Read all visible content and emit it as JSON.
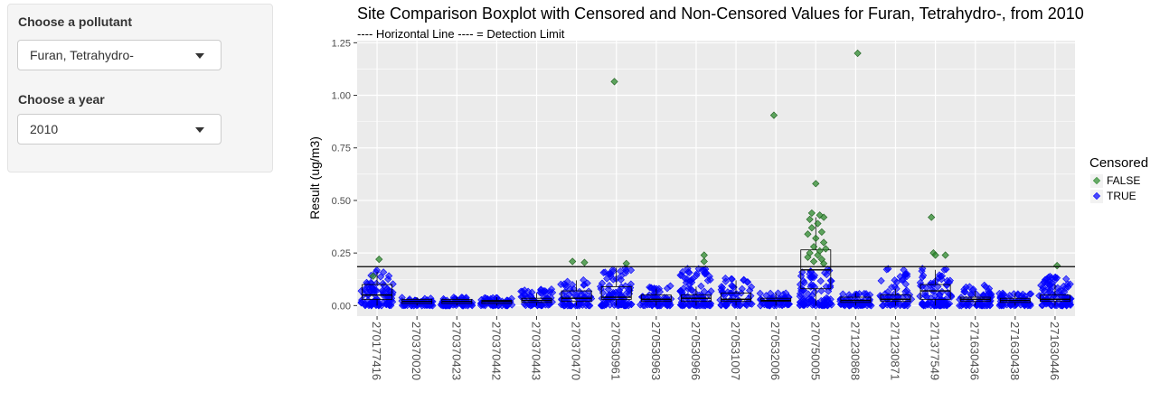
{
  "sidebar": {
    "pollutant_label": "Choose a pollutant",
    "pollutant_value": "Furan, Tetrahydro-",
    "year_label": "Choose a year",
    "year_value": "2010"
  },
  "colors": {
    "censored_false": "#2e8b2e",
    "censored_true": "#0000ff",
    "panel_bg": "#ebebeb",
    "grid": "#ffffff"
  },
  "chart_data": {
    "type": "boxplot",
    "title": "Site Comparison Boxplot with Censored and Non-Censored Values for Furan, Tetrahydro-, from 2010",
    "subtitle": "---- Horizontal Line ----  =  Detection Limit",
    "xlabel": "",
    "ylabel": "Result (ug/m3)",
    "ylim": [
      -0.05,
      1.26
    ],
    "yticks": [
      0,
      0.25,
      0.5,
      0.75,
      1,
      1.25
    ],
    "ytick_labels": [
      "0.00",
      "0.25",
      "0.50",
      "0.75",
      "1.00",
      "1.25"
    ],
    "grid": true,
    "detection_limit": 0.185,
    "legend": {
      "title": "Censored",
      "position": "right",
      "entries": [
        "FALSE",
        "TRUE"
      ]
    },
    "categories": [
      "270177416",
      "270370020",
      "270370423",
      "270370442",
      "270370443",
      "270370470",
      "270530961",
      "270530963",
      "270530966",
      "270531007",
      "270532006",
      "270750005",
      "271230868",
      "271230871",
      "271377549",
      "271630436",
      "271630438",
      "271630446"
    ],
    "boxes": [
      {
        "q1": 0.03,
        "median": 0.05,
        "q3": 0.1,
        "low": 0.0,
        "high": 0.16
      },
      {
        "q1": 0.01,
        "median": 0.02,
        "q3": 0.03,
        "low": 0.0,
        "high": 0.04
      },
      {
        "q1": 0.01,
        "median": 0.02,
        "q3": 0.03,
        "low": 0.0,
        "high": 0.04
      },
      {
        "q1": 0.01,
        "median": 0.02,
        "q3": 0.025,
        "low": 0.0,
        "high": 0.04
      },
      {
        "q1": 0.015,
        "median": 0.025,
        "q3": 0.035,
        "low": 0.0,
        "high": 0.06
      },
      {
        "q1": 0.02,
        "median": 0.035,
        "q3": 0.07,
        "low": 0.0,
        "high": 0.12
      },
      {
        "q1": 0.03,
        "median": 0.04,
        "q3": 0.09,
        "low": 0.0,
        "high": 0.18
      },
      {
        "q1": 0.02,
        "median": 0.03,
        "q3": 0.05,
        "low": 0.0,
        "high": 0.08
      },
      {
        "q1": 0.02,
        "median": 0.035,
        "q3": 0.05,
        "low": 0.0,
        "high": 0.09
      },
      {
        "q1": 0.02,
        "median": 0.03,
        "q3": 0.06,
        "low": 0.0,
        "high": 0.12
      },
      {
        "q1": 0.02,
        "median": 0.025,
        "q3": 0.035,
        "low": 0.0,
        "high": 0.06
      },
      {
        "q1": 0.08,
        "median": 0.17,
        "q3": 0.265,
        "low": 0.0,
        "high": 0.42
      },
      {
        "q1": 0.015,
        "median": 0.025,
        "q3": 0.04,
        "low": 0.0,
        "high": 0.06
      },
      {
        "q1": 0.02,
        "median": 0.03,
        "q3": 0.05,
        "low": 0.0,
        "high": 0.08
      },
      {
        "q1": 0.03,
        "median": 0.07,
        "q3": 0.1,
        "low": 0.0,
        "high": 0.17
      },
      {
        "q1": 0.02,
        "median": 0.03,
        "q3": 0.04,
        "low": 0.0,
        "high": 0.07
      },
      {
        "q1": 0.015,
        "median": 0.025,
        "q3": 0.035,
        "low": 0.0,
        "high": 0.06
      },
      {
        "q1": 0.02,
        "median": 0.03,
        "q3": 0.05,
        "low": 0.0,
        "high": 0.1
      }
    ],
    "noncensored_points": [
      {
        "site": 0,
        "x_offset": 0.05,
        "y": 0.22
      },
      {
        "site": 0,
        "x_offset": -0.1,
        "y": 0.14
      },
      {
        "site": 5,
        "x_offset": -0.1,
        "y": 0.21
      },
      {
        "site": 5,
        "x_offset": 0.2,
        "y": 0.205
      },
      {
        "site": 6,
        "x_offset": -0.05,
        "y": 1.065
      },
      {
        "site": 6,
        "x_offset": 0.25,
        "y": 0.2
      },
      {
        "site": 8,
        "x_offset": 0.2,
        "y": 0.24
      },
      {
        "site": 8,
        "x_offset": 0.2,
        "y": 0.21
      },
      {
        "site": 10,
        "x_offset": -0.05,
        "y": 0.905
      },
      {
        "site": 11,
        "x_offset": 0.0,
        "y": 0.58
      },
      {
        "site": 11,
        "x_offset": -0.1,
        "y": 0.44
      },
      {
        "site": 11,
        "x_offset": 0.1,
        "y": 0.43
      },
      {
        "site": 11,
        "x_offset": -0.15,
        "y": 0.41
      },
      {
        "site": 11,
        "x_offset": 0.2,
        "y": 0.42
      },
      {
        "site": 11,
        "x_offset": -0.1,
        "y": 0.37
      },
      {
        "site": 11,
        "x_offset": 0.05,
        "y": 0.39
      },
      {
        "site": 11,
        "x_offset": 0.15,
        "y": 0.35
      },
      {
        "site": 11,
        "x_offset": -0.2,
        "y": 0.34
      },
      {
        "site": 11,
        "x_offset": 0.0,
        "y": 0.32
      },
      {
        "site": 11,
        "x_offset": 0.2,
        "y": 0.3
      },
      {
        "site": 11,
        "x_offset": -0.05,
        "y": 0.28
      },
      {
        "site": 11,
        "x_offset": 0.25,
        "y": 0.27
      },
      {
        "site": 11,
        "x_offset": 0.1,
        "y": 0.26
      },
      {
        "site": 11,
        "x_offset": -0.15,
        "y": 0.25
      },
      {
        "site": 11,
        "x_offset": 0.05,
        "y": 0.24
      },
      {
        "site": 11,
        "x_offset": -0.2,
        "y": 0.23
      },
      {
        "site": 11,
        "x_offset": 0.15,
        "y": 0.22
      },
      {
        "site": 11,
        "x_offset": -0.05,
        "y": 0.21
      },
      {
        "site": 11,
        "x_offset": 0.2,
        "y": 0.2
      },
      {
        "site": 12,
        "x_offset": 0.05,
        "y": 1.2
      },
      {
        "site": 14,
        "x_offset": -0.1,
        "y": 0.42
      },
      {
        "site": 14,
        "x_offset": -0.05,
        "y": 0.25
      },
      {
        "site": 14,
        "x_offset": 0.0,
        "y": 0.24
      },
      {
        "site": 14,
        "x_offset": 0.25,
        "y": 0.24
      },
      {
        "site": 17,
        "x_offset": 0.05,
        "y": 0.19
      }
    ],
    "censored_points_per_site": [
      90,
      60,
      60,
      60,
      60,
      60,
      90,
      60,
      90,
      60,
      60,
      90,
      60,
      60,
      90,
      60,
      60,
      90
    ],
    "censored_spread_per_site": [
      0.17,
      0.04,
      0.04,
      0.04,
      0.08,
      0.13,
      0.18,
      0.1,
      0.19,
      0.13,
      0.06,
      0.18,
      0.06,
      0.18,
      0.18,
      0.1,
      0.06,
      0.14
    ]
  }
}
